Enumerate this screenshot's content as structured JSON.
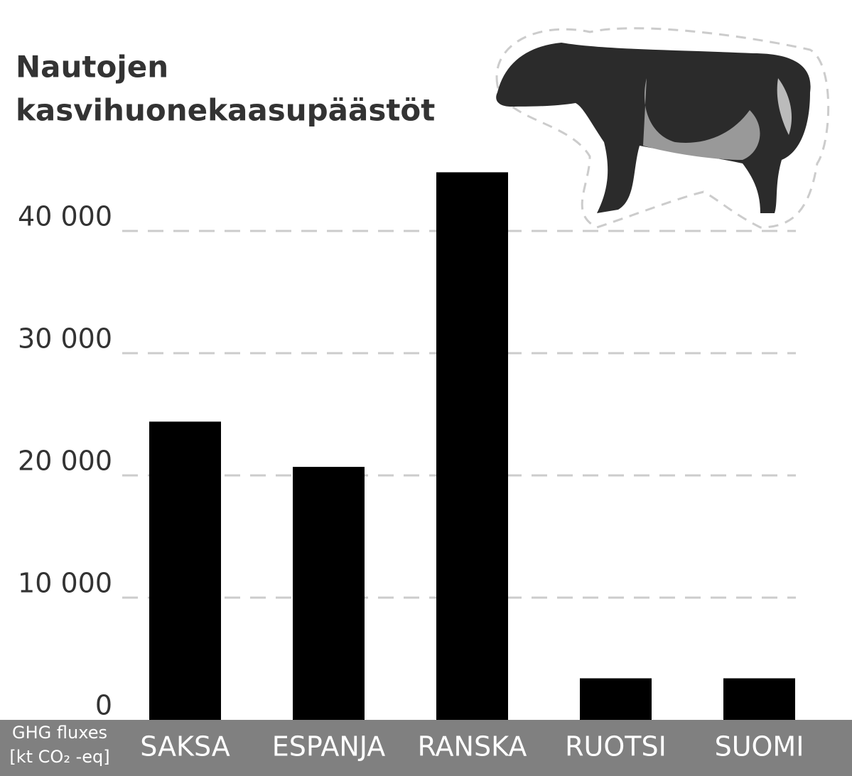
{
  "chart_data": {
    "type": "bar",
    "title": [
      "Nautojen",
      "kasvihuonekaasupäästöt"
    ],
    "y_label": [
      "GHG fluxes",
      "[kt CO₂ -eq]"
    ],
    "categories": [
      "SAKSA",
      "ESPANJA",
      "RANSKA",
      "RUOTSI",
      "SUOMI"
    ],
    "values": [
      24400,
      20700,
      44800,
      3400,
      3400
    ],
    "color": "#000000",
    "ylim": [
      0,
      45000
    ],
    "yticks": [
      0,
      {
        "value": 10000,
        "label": "10 000"
      },
      {
        "value": 20000,
        "label": "20 000"
      },
      {
        "value": 30000,
        "label": "30 000"
      },
      {
        "value": 40000,
        "label": "40 000"
      }
    ],
    "grid": true
  }
}
